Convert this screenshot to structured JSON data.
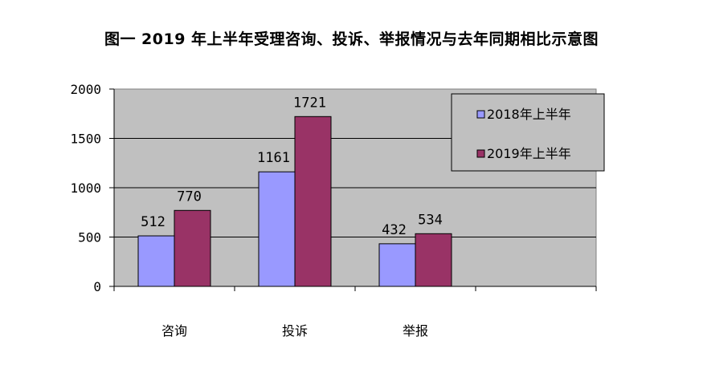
{
  "chart_data": {
    "type": "bar",
    "title": "图一 2019 年上半年受理咨询、投诉、举报情况与去年同期相比示意图",
    "categories": [
      "咨询",
      "投诉",
      "举报"
    ],
    "series": [
      {
        "name": "2018年上半年",
        "values": [
          512,
          1161,
          432
        ],
        "color": "#9999ff"
      },
      {
        "name": "2019年上半年",
        "values": [
          770,
          1721,
          534
        ],
        "color": "#993366"
      }
    ],
    "yticks": [
      "0",
      "500",
      "1000",
      "1500",
      "2000"
    ],
    "ylim": [
      0,
      2000
    ],
    "grid": true,
    "legend": "top-right",
    "plot_bg": "#c0c0c0"
  }
}
